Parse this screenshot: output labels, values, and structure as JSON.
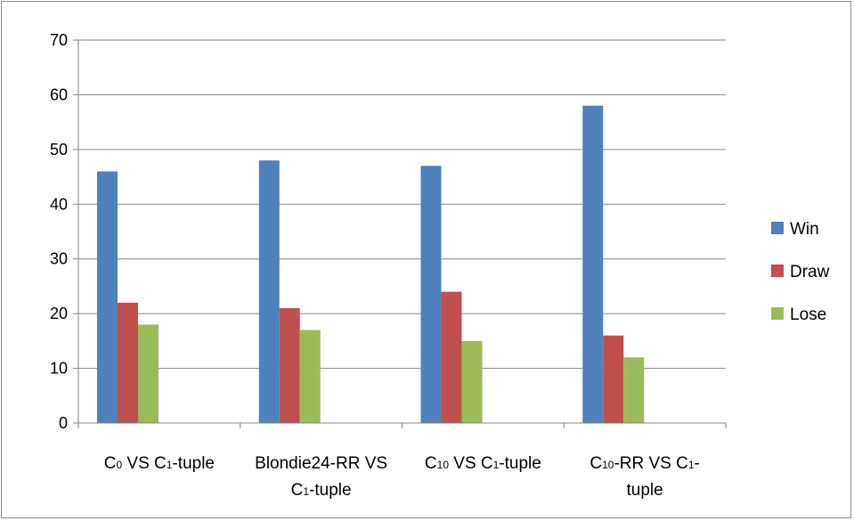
{
  "chart_data": {
    "type": "bar",
    "title": "",
    "xlabel": "",
    "ylabel": "",
    "ylim": [
      0,
      70
    ],
    "yticks": [
      "0",
      "10",
      "20",
      "30",
      "40",
      "50",
      "60",
      "70"
    ],
    "grid": true,
    "legend_position": "right",
    "categories": [
      "C0 VS C1-tuple",
      "Blondie24-RR VS C1-tuple",
      "C10 VS C1-tuple",
      "C10-RR VS C1-tuple"
    ],
    "category_lines": [
      [
        [
          [
            "C",
            ""
          ],
          [
            "0",
            "sub"
          ],
          [
            " VS C",
            ""
          ],
          [
            "1",
            "sub"
          ],
          [
            "-tuple",
            ""
          ]
        ]
      ],
      [
        [
          [
            "Blondie24-RR VS",
            ""
          ]
        ],
        [
          [
            "C",
            ""
          ],
          [
            "1",
            "sub"
          ],
          [
            "-tuple",
            ""
          ]
        ]
      ],
      [
        [
          [
            "C",
            ""
          ],
          [
            "10",
            "sub"
          ],
          [
            " VS C",
            ""
          ],
          [
            "1",
            "sub"
          ],
          [
            "-tuple",
            ""
          ]
        ]
      ],
      [
        [
          [
            "C",
            ""
          ],
          [
            "10",
            "sub"
          ],
          [
            "-RR VS C",
            ""
          ],
          [
            "1",
            "sub"
          ],
          [
            "-",
            ""
          ]
        ],
        [
          [
            "tuple",
            ""
          ]
        ]
      ]
    ],
    "series": [
      {
        "name": "Win",
        "color": "#4f81bd",
        "values": [
          46,
          48,
          47,
          58
        ]
      },
      {
        "name": "Draw",
        "color": "#c0504d",
        "values": [
          22,
          21,
          24,
          16
        ]
      },
      {
        "name": "Lose",
        "color": "#9bbb59",
        "values": [
          18,
          17,
          15,
          12
        ]
      }
    ]
  }
}
